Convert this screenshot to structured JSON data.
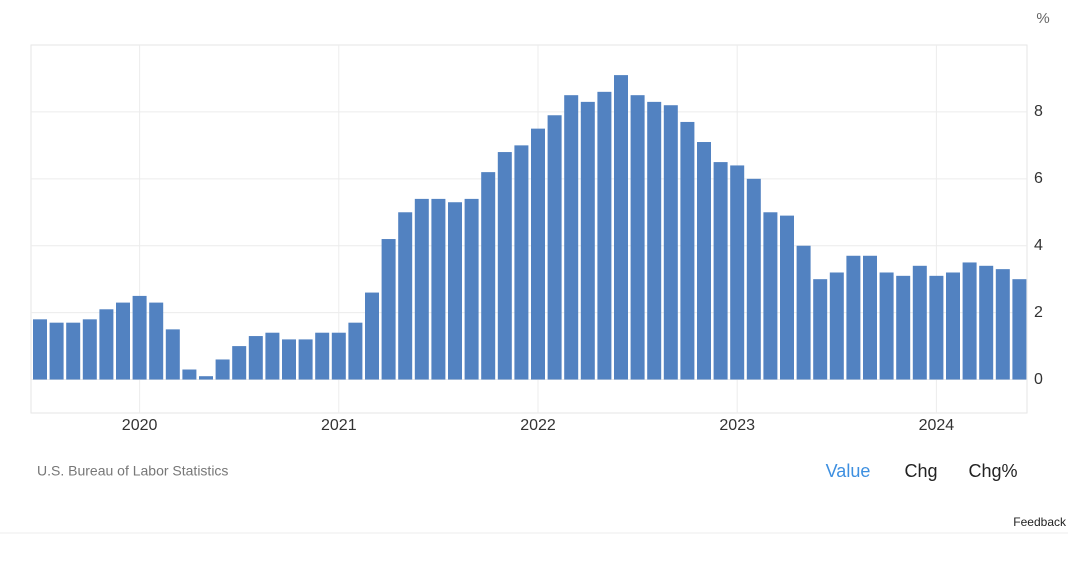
{
  "chart_data": {
    "type": "bar",
    "unit": "%",
    "categories": [
      null,
      null,
      null,
      null,
      null,
      null,
      "2020",
      null,
      null,
      null,
      null,
      null,
      null,
      null,
      null,
      null,
      null,
      null,
      "2021",
      null,
      null,
      null,
      null,
      null,
      null,
      null,
      null,
      null,
      null,
      null,
      "2022",
      null,
      null,
      null,
      null,
      null,
      null,
      null,
      null,
      null,
      null,
      null,
      "2023",
      null,
      null,
      null,
      null,
      null,
      null,
      null,
      null,
      null,
      null,
      null,
      "2024",
      null,
      null,
      null,
      null,
      null
    ],
    "values": [
      1.8,
      1.7,
      1.7,
      1.8,
      2.1,
      2.3,
      2.5,
      2.3,
      1.5,
      0.3,
      0.1,
      0.6,
      1.0,
      1.3,
      1.4,
      1.2,
      1.2,
      1.4,
      1.4,
      1.7,
      2.6,
      4.2,
      5.0,
      5.4,
      5.4,
      5.3,
      5.4,
      6.2,
      6.8,
      7.0,
      7.5,
      7.9,
      8.5,
      8.3,
      8.6,
      9.1,
      8.5,
      8.3,
      8.2,
      7.7,
      7.1,
      6.5,
      6.4,
      6.0,
      5.0,
      4.9,
      4.0,
      3.0,
      3.2,
      3.7,
      3.7,
      3.2,
      3.1,
      3.4,
      3.1,
      3.2,
      3.5,
      3.4,
      3.3,
      3.0
    ],
    "color": "#5282c1",
    "ylim": [
      -1,
      10
    ],
    "yticks": [
      0,
      2,
      4,
      6,
      8
    ],
    "grid": true
  },
  "source": "U.S. Bureau of Labor Statistics",
  "controls": [
    "Value",
    "Chg",
    "Chg%"
  ],
  "feedback": "Feedback"
}
